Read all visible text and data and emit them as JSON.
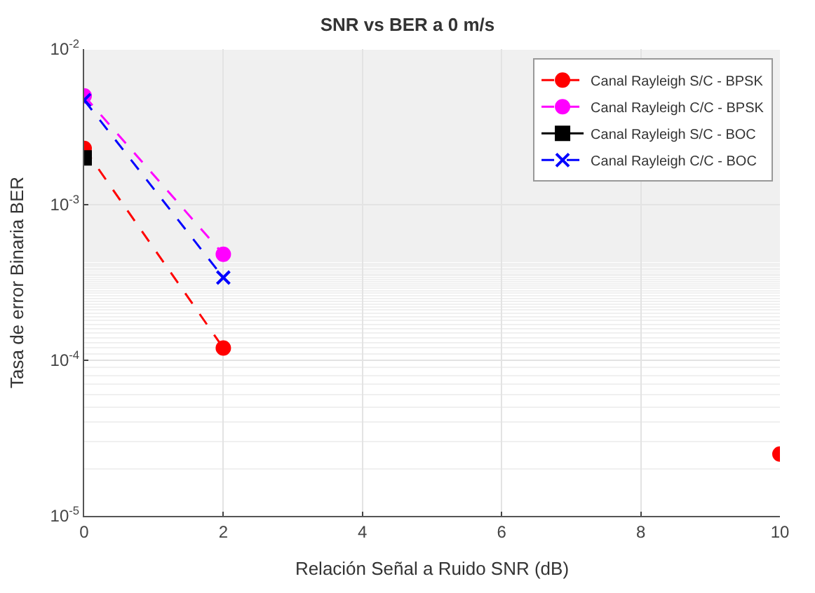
{
  "chart_data": {
    "type": "line",
    "title": "SNR vs BER a 0 m/s",
    "xlabel": "Relación Señal a Ruido SNR (dB)",
    "ylabel": "Tasa de error Binaria BER",
    "x": [
      0,
      2,
      4,
      6,
      8,
      10
    ],
    "series": [
      {
        "name": "Canal Rayleigh S/C - BPSK",
        "color": "#ff0000",
        "values": [
          0.0023,
          0.00012,
          null,
          null,
          null,
          2.5e-05
        ],
        "marker": "circle",
        "line_style": "dashed"
      },
      {
        "name": "Canal Rayleigh C/C - BPSK",
        "color": "#ff00ff",
        "values": [
          0.005,
          0.00048,
          null,
          null,
          null,
          null
        ],
        "marker": "circle",
        "line_style": "dashed"
      },
      {
        "name": "Canal Rayleigh S/C - BOC",
        "color": "#000000",
        "values": [
          0.002,
          null,
          null,
          null,
          null,
          null
        ],
        "marker": "square",
        "line_style": "solid"
      },
      {
        "name": "Canal Rayleigh C/C - BOC",
        "color": "#0000ff",
        "values": [
          0.0047,
          0.00034,
          null,
          null,
          null,
          null
        ],
        "marker": "cross",
        "line_style": "dashed"
      }
    ],
    "log": "y",
    "xlim": [
      0,
      10
    ],
    "xticks": [
      0,
      2,
      4,
      6,
      8,
      10
    ],
    "ylim": [
      1e-05,
      0.01
    ],
    "yticks": [
      {
        "value": 1e-05,
        "label": "10$^{-5}$"
      },
      {
        "value": 0.0001,
        "label": "10$^{-4}$"
      },
      {
        "value": 0.001,
        "label": "10$^{-3}$"
      },
      {
        "value": 0.01,
        "label": "10$^{-2}$"
      }
    ],
    "grid": true,
    "legend": "top right"
  }
}
